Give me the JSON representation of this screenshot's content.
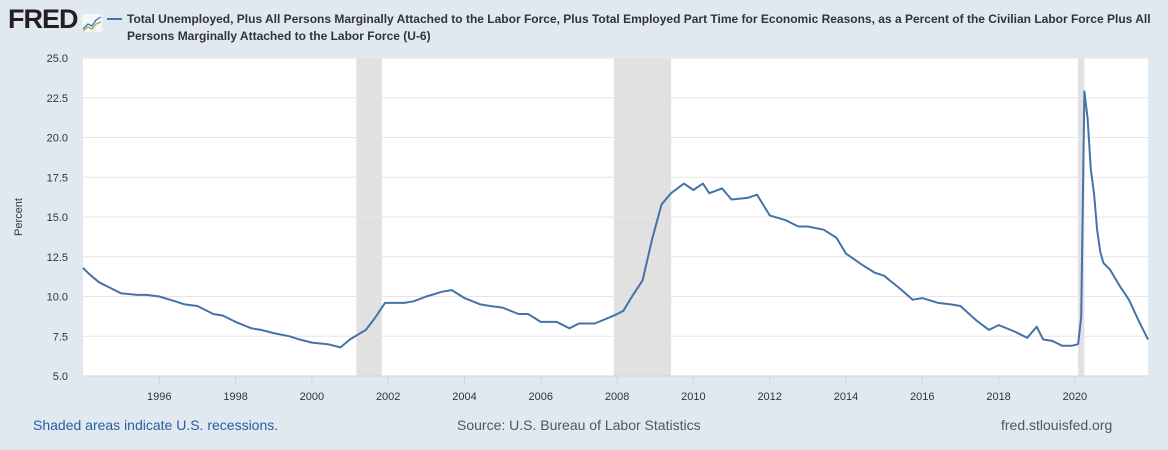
{
  "logo": "FRED",
  "chart_data": {
    "type": "line",
    "title": "Total Unemployed, Plus All Persons Marginally Attached to the Labor Force, Plus Total Employed Part Time for Economic Reasons, as a Percent of the Civilian Labor Force Plus All Persons Marginally Attached to the Labor Force (U-6)",
    "ylabel": "Percent",
    "xlabel": "",
    "ylim": [
      5,
      25
    ],
    "xlim": [
      "1994-01",
      "2021-12"
    ],
    "yticks": [
      "5.0",
      "7.5",
      "10.0",
      "12.5",
      "15.0",
      "17.5",
      "20.0",
      "22.5",
      "25.0"
    ],
    "xticks": [
      "1996",
      "1998",
      "2000",
      "2002",
      "2004",
      "2006",
      "2008",
      "2010",
      "2012",
      "2014",
      "2016",
      "2018",
      "2020"
    ],
    "grid": true,
    "line_color": "#4572a7",
    "recessions": [
      [
        "2001-03",
        "2001-11"
      ],
      [
        "2007-12",
        "2009-06"
      ],
      [
        "2020-02",
        "2020-04"
      ]
    ],
    "series": [
      {
        "name": "U-6",
        "points": [
          [
            "1994-01",
            11.8
          ],
          [
            "1994-03",
            11.4
          ],
          [
            "1994-06",
            10.9
          ],
          [
            "1994-09",
            10.6
          ],
          [
            "1995-01",
            10.2
          ],
          [
            "1995-06",
            10.1
          ],
          [
            "1995-09",
            10.1
          ],
          [
            "1996-01",
            10.0
          ],
          [
            "1996-06",
            9.7
          ],
          [
            "1996-09",
            9.5
          ],
          [
            "1997-01",
            9.4
          ],
          [
            "1997-06",
            8.9
          ],
          [
            "1997-09",
            8.8
          ],
          [
            "1998-01",
            8.4
          ],
          [
            "1998-06",
            8.0
          ],
          [
            "1998-09",
            7.9
          ],
          [
            "1999-01",
            7.7
          ],
          [
            "1999-06",
            7.5
          ],
          [
            "1999-09",
            7.3
          ],
          [
            "2000-01",
            7.1
          ],
          [
            "2000-06",
            7.0
          ],
          [
            "2000-10",
            6.8
          ],
          [
            "2001-01",
            7.3
          ],
          [
            "2001-06",
            7.9
          ],
          [
            "2001-09",
            8.7
          ],
          [
            "2001-12",
            9.6
          ],
          [
            "2002-06",
            9.6
          ],
          [
            "2002-09",
            9.7
          ],
          [
            "2003-01",
            10.0
          ],
          [
            "2003-06",
            10.3
          ],
          [
            "2003-09",
            10.4
          ],
          [
            "2004-01",
            9.9
          ],
          [
            "2004-06",
            9.5
          ],
          [
            "2004-09",
            9.4
          ],
          [
            "2005-01",
            9.3
          ],
          [
            "2005-06",
            8.9
          ],
          [
            "2005-09",
            8.9
          ],
          [
            "2006-01",
            8.4
          ],
          [
            "2006-06",
            8.4
          ],
          [
            "2006-10",
            8.0
          ],
          [
            "2007-01",
            8.3
          ],
          [
            "2007-06",
            8.3
          ],
          [
            "2007-12",
            8.8
          ],
          [
            "2008-03",
            9.1
          ],
          [
            "2008-06",
            10.1
          ],
          [
            "2008-09",
            11.0
          ],
          [
            "2008-12",
            13.6
          ],
          [
            "2009-03",
            15.8
          ],
          [
            "2009-06",
            16.5
          ],
          [
            "2009-10",
            17.1
          ],
          [
            "2010-01",
            16.7
          ],
          [
            "2010-04",
            17.1
          ],
          [
            "2010-06",
            16.5
          ],
          [
            "2010-10",
            16.8
          ],
          [
            "2011-01",
            16.1
          ],
          [
            "2011-06",
            16.2
          ],
          [
            "2011-09",
            16.4
          ],
          [
            "2012-01",
            15.1
          ],
          [
            "2012-06",
            14.8
          ],
          [
            "2012-10",
            14.4
          ],
          [
            "2013-01",
            14.4
          ],
          [
            "2013-06",
            14.2
          ],
          [
            "2013-10",
            13.7
          ],
          [
            "2014-01",
            12.7
          ],
          [
            "2014-06",
            12.0
          ],
          [
            "2014-10",
            11.5
          ],
          [
            "2015-01",
            11.3
          ],
          [
            "2015-06",
            10.5
          ],
          [
            "2015-10",
            9.8
          ],
          [
            "2016-01",
            9.9
          ],
          [
            "2016-06",
            9.6
          ],
          [
            "2016-10",
            9.5
          ],
          [
            "2017-01",
            9.4
          ],
          [
            "2017-06",
            8.5
          ],
          [
            "2017-10",
            7.9
          ],
          [
            "2018-01",
            8.2
          ],
          [
            "2018-06",
            7.8
          ],
          [
            "2018-10",
            7.4
          ],
          [
            "2019-01",
            8.1
          ],
          [
            "2019-03",
            7.3
          ],
          [
            "2019-06",
            7.2
          ],
          [
            "2019-09",
            6.9
          ],
          [
            "2019-12",
            6.9
          ],
          [
            "2020-02",
            7.0
          ],
          [
            "2020-03",
            8.7
          ],
          [
            "2020-04",
            22.9
          ],
          [
            "2020-05",
            21.2
          ],
          [
            "2020-06",
            18.0
          ],
          [
            "2020-07",
            16.5
          ],
          [
            "2020-08",
            14.2
          ],
          [
            "2020-09",
            12.8
          ],
          [
            "2020-10",
            12.1
          ],
          [
            "2020-12",
            11.7
          ],
          [
            "2021-03",
            10.7
          ],
          [
            "2021-06",
            9.8
          ],
          [
            "2021-09",
            8.5
          ],
          [
            "2021-11",
            7.7
          ],
          [
            "2021-12",
            7.3
          ]
        ]
      }
    ]
  },
  "footer": {
    "left": "Shaded areas indicate U.S. recessions.",
    "source": "Source: U.S. Bureau of Labor Statistics",
    "site": "fred.stlouisfed.org"
  }
}
